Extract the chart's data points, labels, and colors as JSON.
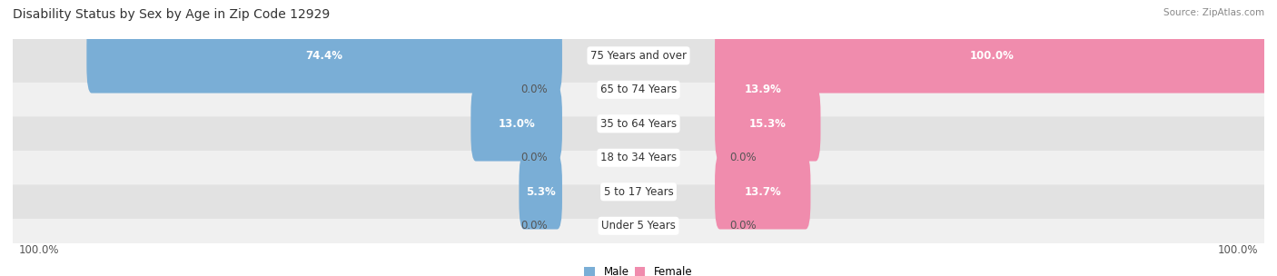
{
  "title": "Disability Status by Sex by Age in Zip Code 12929",
  "source": "Source: ZipAtlas.com",
  "categories": [
    "Under 5 Years",
    "5 to 17 Years",
    "18 to 34 Years",
    "35 to 64 Years",
    "65 to 74 Years",
    "75 Years and over"
  ],
  "male_values": [
    0.0,
    5.3,
    0.0,
    13.0,
    0.0,
    74.4
  ],
  "female_values": [
    0.0,
    13.7,
    0.0,
    15.3,
    13.9,
    100.0
  ],
  "male_color": "#7aaed6",
  "female_color": "#f08cad",
  "row_bg_colors": [
    "#f0f0f0",
    "#e2e2e2"
  ],
  "max_value": 100.0,
  "title_fontsize": 10,
  "label_fontsize": 8.5,
  "tick_fontsize": 8.5
}
